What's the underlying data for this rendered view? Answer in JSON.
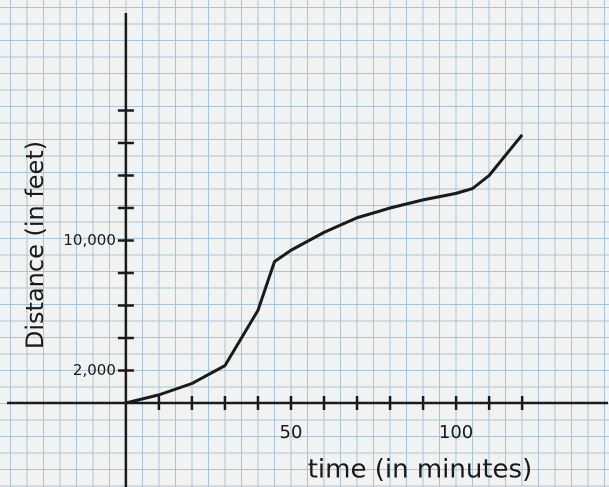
{
  "chart_data": {
    "type": "line",
    "xlabel": "time (in minutes)",
    "ylabel": "Distance (in feet)",
    "x": [
      0,
      10,
      20,
      30,
      40,
      45,
      50,
      60,
      70,
      80,
      90,
      100,
      105,
      110,
      120
    ],
    "series": [
      {
        "color": "#1a1a1a",
        "values": [
          0,
          500,
          1200,
          2300,
          5700,
          8700,
          9400,
          10500,
          11400,
          12000,
          12500,
          12900,
          13200,
          14000,
          16500
        ]
      }
    ],
    "xlim": [
      -36,
      146
    ],
    "ylim": [
      -5200,
      24000
    ],
    "xticks": [
      50,
      100
    ],
    "yticks": [
      {
        "value": 2000,
        "label": "2,000"
      },
      {
        "value": 10000,
        "label": "10,000"
      }
    ],
    "xminorticks": [
      10,
      20,
      30,
      40,
      50,
      60,
      70,
      80,
      90,
      100,
      110,
      120
    ],
    "yminorticks": [
      2000,
      4000,
      6000,
      8000,
      10000,
      12000,
      14000,
      16000,
      18000
    ]
  }
}
